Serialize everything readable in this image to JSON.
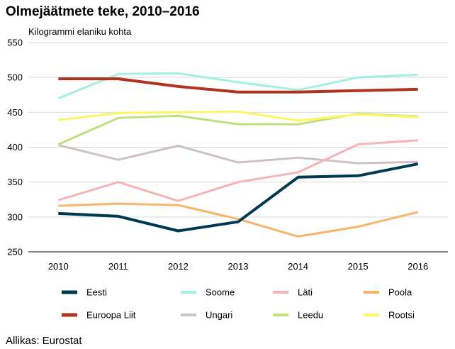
{
  "chart_data": {
    "type": "line",
    "title": "Olmejäätmete teke, 2010–2016",
    "ylabel": "Kilogrammi elaniku kohta",
    "xlabel": "",
    "ylim": [
      250,
      550
    ],
    "y_ticks": [
      "250",
      "300",
      "350",
      "400",
      "450",
      "500",
      "550"
    ],
    "categories": [
      "2010",
      "2011",
      "2012",
      "2013",
      "2014",
      "2015",
      "2016"
    ],
    "grid": "horizontal",
    "legend_position": "bottom",
    "series": [
      {
        "name": "Eesti",
        "color": "#003a51",
        "values": [
          305,
          301,
          280,
          293,
          357,
          359,
          376
        ]
      },
      {
        "name": "Soome",
        "color": "#a4f0e0",
        "values": [
          470,
          505,
          506,
          493,
          482,
          500,
          504
        ]
      },
      {
        "name": "Läti",
        "color": "#f8b4b4",
        "values": [
          324,
          350,
          323,
          350,
          364,
          404,
          410
        ]
      },
      {
        "name": "Poola",
        "color": "#f6b56b",
        "values": [
          316,
          319,
          317,
          297,
          272,
          286,
          307
        ]
      },
      {
        "name": "Euroopa Liit",
        "color": "#ae3421",
        "values": [
          498,
          498,
          487,
          479,
          479,
          481,
          483
        ]
      },
      {
        "name": "Ungari",
        "color": "#cdc1c6",
        "values": [
          403,
          382,
          402,
          378,
          385,
          377,
          379
        ]
      },
      {
        "name": "Leedu",
        "color": "#bfe07c",
        "values": [
          404,
          442,
          445,
          433,
          433,
          448,
          444
        ]
      },
      {
        "name": "Rootsi",
        "color": "#fff463",
        "values": [
          439,
          449,
          450,
          451,
          438,
          447,
          443
        ]
      }
    ],
    "source": "Allikas: Eurostat"
  }
}
